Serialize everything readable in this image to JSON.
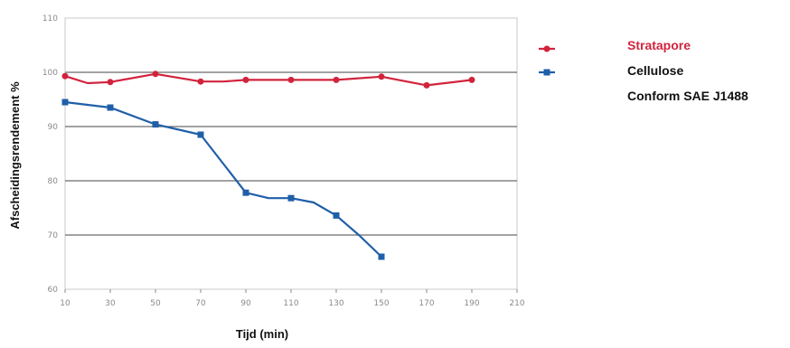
{
  "chart_data": {
    "type": "line",
    "xlabel": "Tijd (min)",
    "ylabel": "Afscheidingsrendement %",
    "x_ticks": [
      "10",
      "30",
      "50",
      "70",
      "90",
      "110",
      "130",
      "150",
      "170",
      "190",
      "210"
    ],
    "y_ticks": [
      "60",
      "70",
      "80",
      "90",
      "100",
      "110"
    ],
    "xlim": [
      10,
      210
    ],
    "ylim": [
      60,
      110
    ],
    "grid": "horizontal",
    "legend_position": "right",
    "series": [
      {
        "name": "Stratapore",
        "color": "#d2233c",
        "points": [
          [
            10,
            99.3
          ],
          [
            20,
            98.0
          ],
          [
            30,
            98.2
          ],
          [
            50,
            99.7
          ],
          [
            70,
            98.3
          ],
          [
            80,
            98.3
          ],
          [
            90,
            98.6
          ],
          [
            110,
            98.6
          ],
          [
            130,
            98.6
          ],
          [
            150,
            99.2
          ],
          [
            170,
            97.6
          ],
          [
            190,
            98.6
          ]
        ]
      },
      {
        "name": "Cellulose",
        "color": "#1f5fa8",
        "points": [
          [
            10,
            94.5
          ],
          [
            30,
            93.5
          ],
          [
            50,
            90.4
          ],
          [
            70,
            88.5
          ],
          [
            90,
            77.8
          ],
          [
            100,
            76.8
          ],
          [
            110,
            76.8
          ],
          [
            120,
            76.0
          ],
          [
            130,
            73.6
          ],
          [
            140,
            70.0
          ],
          [
            150,
            66.0
          ]
        ]
      }
    ],
    "legend_extra": "Conform SAE J1488"
  }
}
